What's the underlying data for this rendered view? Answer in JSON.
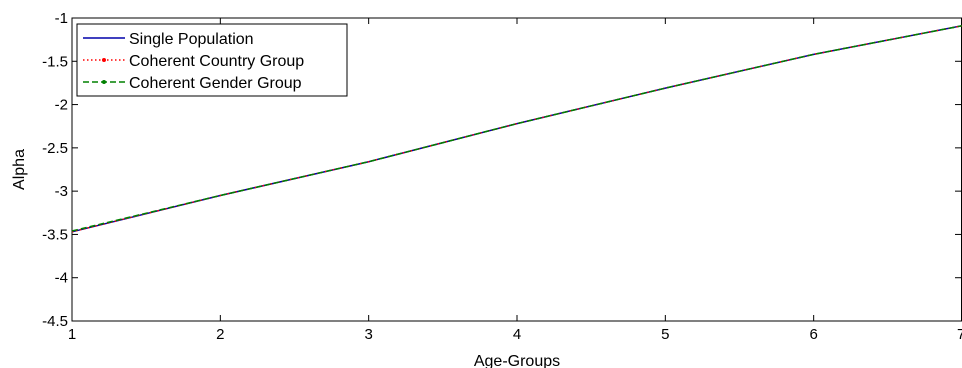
{
  "chart_data": {
    "type": "line",
    "title": "",
    "xlabel": "Age-Groups",
    "ylabel": "Alpha",
    "xlim": [
      1,
      7
    ],
    "ylim": [
      -4.5,
      -1
    ],
    "xticks": [
      1,
      2,
      3,
      4,
      5,
      6,
      7
    ],
    "yticks": [
      -4.5,
      -4,
      -3.5,
      -3,
      -2.5,
      -2,
      -1.5,
      -1
    ],
    "grid": false,
    "legend_position": "top-left",
    "x": [
      1,
      2,
      3,
      4,
      5,
      6,
      7
    ],
    "series": [
      {
        "name": "Single Population",
        "color": "#0000aa",
        "style": "solid",
        "values": [
          -3.47,
          -3.05,
          -2.66,
          -2.22,
          -1.81,
          -1.42,
          -1.09
        ]
      },
      {
        "name": "Coherent Country Group",
        "color": "#ff0000",
        "style": "dotted-dot-marker",
        "values": [
          -3.47,
          -3.05,
          -2.66,
          -2.22,
          -1.81,
          -1.42,
          -1.09
        ]
      },
      {
        "name": "Coherent Gender Group",
        "color": "#008000",
        "style": "dashed-dot-marker",
        "values": [
          -3.46,
          -3.05,
          -2.66,
          -2.22,
          -1.81,
          -1.42,
          -1.09
        ]
      }
    ]
  }
}
